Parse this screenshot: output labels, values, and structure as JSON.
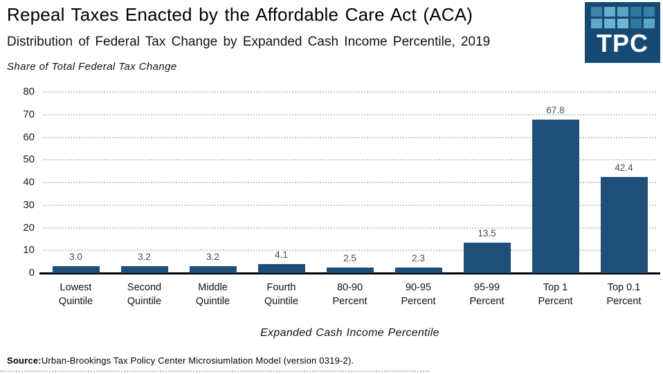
{
  "header": {
    "title": "Repeal Taxes Enacted by the Affordable Care Act (ACA)",
    "subtitle": "Distribution of Federal Tax Change by Expanded Cash Income Percentile, 2019",
    "axis_note": "Share of Total Federal Tax Change"
  },
  "logo": {
    "text": "TPC",
    "background": "#174A73",
    "squares": [
      "#3D83AD",
      "#66AECB",
      "#59A6C4",
      "#2F77A3",
      "#3780AB",
      "#5FA9C7",
      "#6AB1CD",
      "#71B6D1",
      "#2F77A3",
      "#59A6C4"
    ]
  },
  "chart_data": {
    "type": "bar",
    "title": "Repeal Taxes Enacted by the Affordable Care Act (ACA)",
    "subtitle": "Distribution of Federal Tax Change by Expanded Cash Income Percentile, 2019",
    "ylabel": "Share of Total Federal Tax Change",
    "xlabel": "Expanded Cash Income Percentile",
    "categories": [
      "Lowest Quintile",
      "Second Quintile",
      "Middle Quintile",
      "Fourth Quintile",
      "80-90 Percent",
      "90-95 Percent",
      "95-99 Percent",
      "Top 1 Percent",
      "Top 0.1 Percent"
    ],
    "values": [
      3.0,
      3.2,
      3.2,
      4.1,
      2.5,
      2.3,
      13.5,
      67.8,
      42.4
    ],
    "ylim": [
      0,
      80
    ],
    "yticks": [
      0,
      10,
      20,
      30,
      40,
      50,
      60,
      70,
      80
    ],
    "grid": "horizontal-dotted",
    "legend": "none",
    "bar_color": "#1F4E79",
    "value_label_color": "#4a4a4a"
  },
  "footer": {
    "source_label": "Source:",
    "source_text": "Urban-Brookings Tax Policy Center Microsiumlation Model (version 0319-2)."
  }
}
